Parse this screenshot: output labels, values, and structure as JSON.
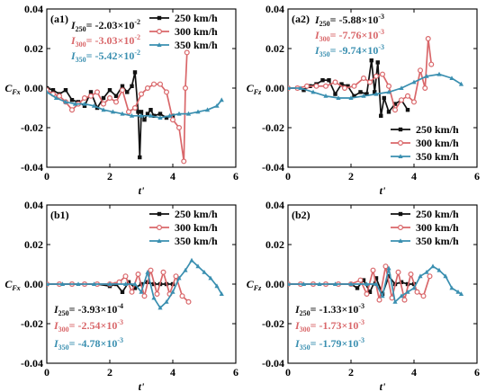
{
  "figure": {
    "colors": {
      "250 km/h": "#111111",
      "300 km/h": "#d9676a",
      "350 km/h": "#3a8fb0"
    }
  },
  "chart_data": [
    {
      "id": "a1",
      "type": "line",
      "panel_label": "(a1)",
      "xlabel": "t'",
      "ylabel": "C_Fx",
      "xlim": [
        0,
        6
      ],
      "ylim": [
        -0.04,
        0.04
      ],
      "xticks": [
        0,
        2,
        4,
        6
      ],
      "yticks": [
        0.04,
        0.02,
        0.0,
        -0.02,
        -0.04
      ],
      "xtick_labels": [
        "0",
        "2",
        "4",
        "6"
      ],
      "ytick_labels": [
        "0.04",
        "0.02",
        "0.00",
        "-0.02",
        "-0.04"
      ],
      "legend_position": "top-right",
      "annotations": [
        {
          "text": "I250= -2.03×10-2",
          "series": "250 km/h"
        },
        {
          "text": "I300= -3.03×10-2",
          "series": "300 km/h"
        },
        {
          "text": "I350= -5.42×10-2",
          "series": "350 km/h"
        }
      ],
      "series": [
        {
          "name": "250 km/h",
          "x": [
            0.0,
            0.2,
            0.4,
            0.6,
            0.8,
            1.0,
            1.2,
            1.4,
            1.6,
            1.8,
            2.0,
            2.2,
            2.4,
            2.55,
            2.7,
            2.8,
            2.9,
            2.95,
            3.0,
            3.1,
            3.2,
            3.3,
            3.4,
            3.6,
            3.8,
            4.0
          ],
          "y": [
            0.0,
            -0.001,
            -0.003,
            -0.001,
            -0.006,
            -0.007,
            -0.009,
            -0.002,
            -0.01,
            -0.005,
            -0.001,
            -0.004,
            0.001,
            -0.002,
            0.001,
            0.008,
            -0.012,
            -0.035,
            -0.012,
            -0.016,
            -0.013,
            -0.011,
            -0.014,
            -0.013,
            -0.015,
            -0.014
          ]
        },
        {
          "name": "300 km/h",
          "x": [
            0.0,
            0.2,
            0.4,
            0.6,
            0.8,
            1.0,
            1.2,
            1.4,
            1.6,
            1.8,
            2.0,
            2.2,
            2.4,
            2.6,
            2.8,
            3.0,
            3.2,
            3.4,
            3.6,
            3.8,
            4.0,
            4.2,
            4.35,
            4.4,
            4.45
          ],
          "y": [
            -0.001,
            -0.003,
            -0.004,
            -0.007,
            -0.011,
            -0.008,
            -0.005,
            -0.004,
            -0.002,
            -0.008,
            -0.005,
            -0.007,
            -0.001,
            -0.012,
            -0.01,
            -0.003,
            0.0,
            0.002,
            0.002,
            -0.002,
            -0.016,
            -0.02,
            -0.037,
            0.0,
            0.018
          ]
        },
        {
          "name": "350 km/h",
          "x": [
            0.0,
            0.3,
            0.6,
            0.9,
            1.2,
            1.5,
            1.8,
            2.1,
            2.4,
            2.7,
            3.0,
            3.3,
            3.6,
            3.9,
            4.2,
            4.5,
            4.8,
            5.1,
            5.4,
            5.55
          ],
          "y": [
            -0.002,
            -0.005,
            -0.007,
            -0.008,
            -0.008,
            -0.009,
            -0.011,
            -0.012,
            -0.013,
            -0.014,
            -0.014,
            -0.014,
            -0.015,
            -0.014,
            -0.013,
            -0.013,
            -0.012,
            -0.011,
            -0.009,
            -0.006
          ]
        }
      ]
    },
    {
      "id": "a2",
      "type": "line",
      "panel_label": "(a2)",
      "xlabel": "t'",
      "ylabel": "C_Fz",
      "xlim": [
        0,
        6
      ],
      "ylim": [
        -0.04,
        0.04
      ],
      "xticks": [
        0,
        2,
        4,
        6
      ],
      "yticks": [
        0.04,
        0.02,
        0.0,
        -0.02,
        -0.04
      ],
      "xtick_labels": [
        "0",
        "2",
        "4",
        "6"
      ],
      "ytick_labels": [
        "0.04",
        "0.02",
        "0.00",
        "-0.02",
        "-0.04"
      ],
      "legend_position": "bottom-right",
      "annotations": [
        {
          "text": "I250= -5.88×10-3",
          "series": "250 km/h"
        },
        {
          "text": "I300= -7.76×10-3",
          "series": "300 km/h"
        },
        {
          "text": "I350= -9.74×10-3",
          "series": "350 km/h"
        }
      ],
      "series": [
        {
          "name": "250 km/h",
          "x": [
            0.0,
            0.3,
            0.5,
            0.7,
            0.9,
            1.1,
            1.3,
            1.5,
            1.7,
            1.9,
            2.1,
            2.3,
            2.5,
            2.65,
            2.75,
            2.85,
            2.95,
            3.05,
            3.2,
            3.4,
            3.6,
            3.8
          ],
          "y": [
            0.0,
            0.0,
            -0.001,
            0.001,
            0.002,
            0.004,
            0.004,
            -0.003,
            0.002,
            0.001,
            -0.004,
            -0.002,
            -0.003,
            0.014,
            -0.002,
            0.013,
            -0.014,
            -0.005,
            -0.012,
            -0.008,
            -0.006,
            -0.011
          ]
        },
        {
          "name": "300 km/h",
          "x": [
            0.0,
            0.3,
            0.6,
            0.9,
            1.2,
            1.5,
            1.8,
            2.1,
            2.4,
            2.6,
            2.8,
            3.0,
            3.2,
            3.4,
            3.6,
            3.8,
            4.0,
            4.2,
            4.35,
            4.45,
            4.55
          ],
          "y": [
            0.0,
            0.0,
            0.001,
            0.001,
            0.001,
            0.003,
            0.0,
            0.001,
            0.005,
            0.003,
            0.006,
            0.007,
            0.001,
            -0.011,
            -0.006,
            -0.004,
            -0.007,
            0.009,
            0.0,
            0.025,
            0.012
          ]
        },
        {
          "name": "350 km/h",
          "x": [
            0.0,
            0.4,
            0.8,
            1.2,
            1.6,
            2.0,
            2.4,
            2.8,
            3.2,
            3.6,
            4.0,
            4.4,
            4.8,
            5.2,
            5.5
          ],
          "y": [
            0.0,
            0.0,
            -0.002,
            -0.004,
            -0.005,
            -0.005,
            -0.004,
            -0.003,
            -0.002,
            0.0,
            0.003,
            0.006,
            0.007,
            0.005,
            0.002
          ]
        }
      ]
    },
    {
      "id": "b1",
      "type": "line",
      "panel_label": "(b1)",
      "xlabel": "t'",
      "ylabel": "C_Fx",
      "xlim": [
        0,
        6
      ],
      "ylim": [
        -0.04,
        0.04
      ],
      "xticks": [
        0,
        2,
        4,
        6
      ],
      "yticks": [
        0.04,
        0.02,
        0.0,
        -0.02,
        -0.04
      ],
      "xtick_labels": [
        "0",
        "2",
        "4",
        "6"
      ],
      "ytick_labels": [
        "0.04",
        "0.02",
        "0.00",
        "-0.02",
        "-0.04"
      ],
      "legend_position": "top-right",
      "annotations": [
        {
          "text": "I250= -3.93×10-4",
          "series": "250 km/h"
        },
        {
          "text": "I300= -2.54×10-3",
          "series": "300 km/h"
        },
        {
          "text": "I350= -4.78×10-3",
          "series": "350 km/h"
        }
      ],
      "series": [
        {
          "name": "250 km/h",
          "x": [
            0.0,
            0.4,
            0.8,
            1.2,
            1.6,
            2.0,
            2.2,
            2.4,
            2.6,
            2.8,
            3.0,
            3.2,
            3.4,
            3.6,
            3.8,
            4.0
          ],
          "y": [
            0.0,
            0.0,
            0.0,
            0.0,
            0.0,
            -0.001,
            0.0,
            -0.004,
            0.001,
            -0.002,
            0.0,
            0.001,
            0.0,
            0.0,
            0.0,
            0.0
          ]
        },
        {
          "name": "300 km/h",
          "x": [
            0.0,
            0.4,
            0.8,
            1.2,
            1.6,
            2.0,
            2.3,
            2.5,
            2.7,
            2.9,
            3.1,
            3.3,
            3.5,
            3.7,
            3.9,
            4.1,
            4.3,
            4.5
          ],
          "y": [
            0.0,
            0.0,
            0.0,
            0.0,
            0.0,
            0.0,
            0.001,
            0.004,
            -0.004,
            0.005,
            -0.006,
            0.007,
            -0.005,
            0.006,
            -0.005,
            0.004,
            -0.006,
            -0.009
          ]
        },
        {
          "name": "350 km/h",
          "x": [
            0.0,
            0.5,
            1.0,
            1.5,
            2.0,
            2.5,
            2.8,
            3.0,
            3.2,
            3.4,
            3.6,
            3.8,
            4.0,
            4.2,
            4.4,
            4.6,
            4.8,
            5.0,
            5.2,
            5.4,
            5.55
          ],
          "y": [
            0.0,
            0.0,
            0.0,
            0.0,
            0.0,
            0.0,
            0.0,
            -0.004,
            0.006,
            -0.007,
            -0.012,
            -0.009,
            -0.004,
            0.003,
            0.007,
            0.012,
            0.009,
            0.006,
            0.003,
            -0.001,
            -0.005
          ]
        }
      ]
    },
    {
      "id": "b2",
      "type": "line",
      "panel_label": "(b2)",
      "xlabel": "t'",
      "ylabel": "C_Fz",
      "xlim": [
        0,
        6
      ],
      "ylim": [
        -0.04,
        0.04
      ],
      "xticks": [
        0,
        2,
        4,
        6
      ],
      "yticks": [
        0.04,
        0.02,
        0.0,
        -0.02,
        -0.04
      ],
      "xtick_labels": [
        "0",
        "2",
        "4",
        "6"
      ],
      "ytick_labels": [
        "0.04",
        "0.02",
        "0.00",
        "-0.02",
        "-0.04"
      ],
      "legend_position": "top-right",
      "annotations": [
        {
          "text": "I250= -1.33×10-3",
          "series": "250 km/h"
        },
        {
          "text": "I300= -1.73×10-3",
          "series": "300 km/h"
        },
        {
          "text": "I350= -1.79×10-3",
          "series": "350 km/h"
        }
      ],
      "series": [
        {
          "name": "250 km/h",
          "x": [
            0.0,
            0.4,
            0.8,
            1.2,
            1.6,
            2.0,
            2.2,
            2.4,
            2.6,
            2.8,
            3.0,
            3.2,
            3.4,
            3.6,
            3.8,
            4.0
          ],
          "y": [
            0.0,
            0.0,
            0.0,
            0.0,
            0.0,
            0.0,
            -0.002,
            0.002,
            -0.004,
            0.003,
            -0.005,
            0.004,
            0.0,
            0.001,
            0.0,
            0.0
          ]
        },
        {
          "name": "300 km/h",
          "x": [
            0.0,
            0.4,
            0.8,
            1.2,
            1.6,
            2.0,
            2.3,
            2.5,
            2.7,
            2.9,
            3.1,
            3.3,
            3.5,
            3.7,
            3.9,
            4.1,
            4.3,
            4.5
          ],
          "y": [
            0.0,
            0.0,
            0.0,
            0.0,
            0.0,
            0.0,
            0.002,
            -0.005,
            0.007,
            -0.008,
            0.009,
            -0.007,
            0.006,
            -0.008,
            0.005,
            -0.004,
            -0.006,
            0.004
          ]
        },
        {
          "name": "350 km/h",
          "x": [
            0.0,
            0.5,
            1.0,
            1.5,
            2.0,
            2.5,
            2.8,
            3.0,
            3.2,
            3.4,
            3.6,
            3.8,
            4.0,
            4.2,
            4.4,
            4.6,
            4.8,
            5.0,
            5.2,
            5.4,
            5.5
          ],
          "y": [
            0.0,
            0.0,
            0.0,
            0.0,
            0.0,
            0.0,
            0.0,
            -0.006,
            0.008,
            -0.009,
            -0.006,
            -0.004,
            -0.002,
            0.004,
            0.006,
            0.009,
            0.007,
            0.004,
            -0.002,
            -0.004,
            -0.005
          ]
        }
      ]
    }
  ]
}
